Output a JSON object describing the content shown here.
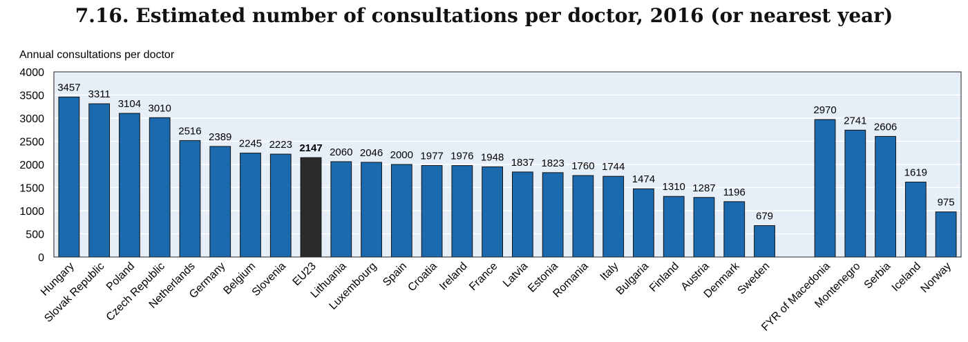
{
  "chart_data": {
    "type": "bar",
    "title": "7.16. Estimated number of consultations per doctor, 2016 (or nearest year)",
    "ylabel": "Annual consultations per doctor",
    "xlabel": "",
    "ylim": [
      0,
      4000
    ],
    "yticks": [
      0,
      500,
      1000,
      1500,
      2000,
      2500,
      3000,
      3500,
      4000
    ],
    "grid": true,
    "categories": [
      "Hungary",
      "Slovak Republic",
      "Poland",
      "Czech Republic",
      "Netherlands",
      "Germany",
      "Belgium",
      "Slovenia",
      "EU23",
      "Lithuania",
      "Luxembourg",
      "Spain",
      "Croatia",
      "Ireland",
      "France",
      "Latvia",
      "Estonia",
      "Romania",
      "Italy",
      "Bulgaria",
      "Finland",
      "Austria",
      "Denmark",
      "Sweden",
      "",
      "FYR of Macedonia",
      "Montenegro",
      "Serbia",
      "Iceland",
      "Norway"
    ],
    "values": [
      3457,
      3311,
      3104,
      3010,
      2516,
      2389,
      2245,
      2223,
      2147,
      2060,
      2046,
      2000,
      1977,
      1976,
      1948,
      1837,
      1823,
      1760,
      1744,
      1474,
      1310,
      1287,
      1196,
      679,
      null,
      2970,
      2741,
      2606,
      1619,
      975
    ],
    "highlight": "EU23",
    "colors": {
      "bar": "#1a6aad",
      "highlight": "#2b2b2b",
      "plot_background": "#e6eef7",
      "grid": "#ffffff"
    }
  }
}
